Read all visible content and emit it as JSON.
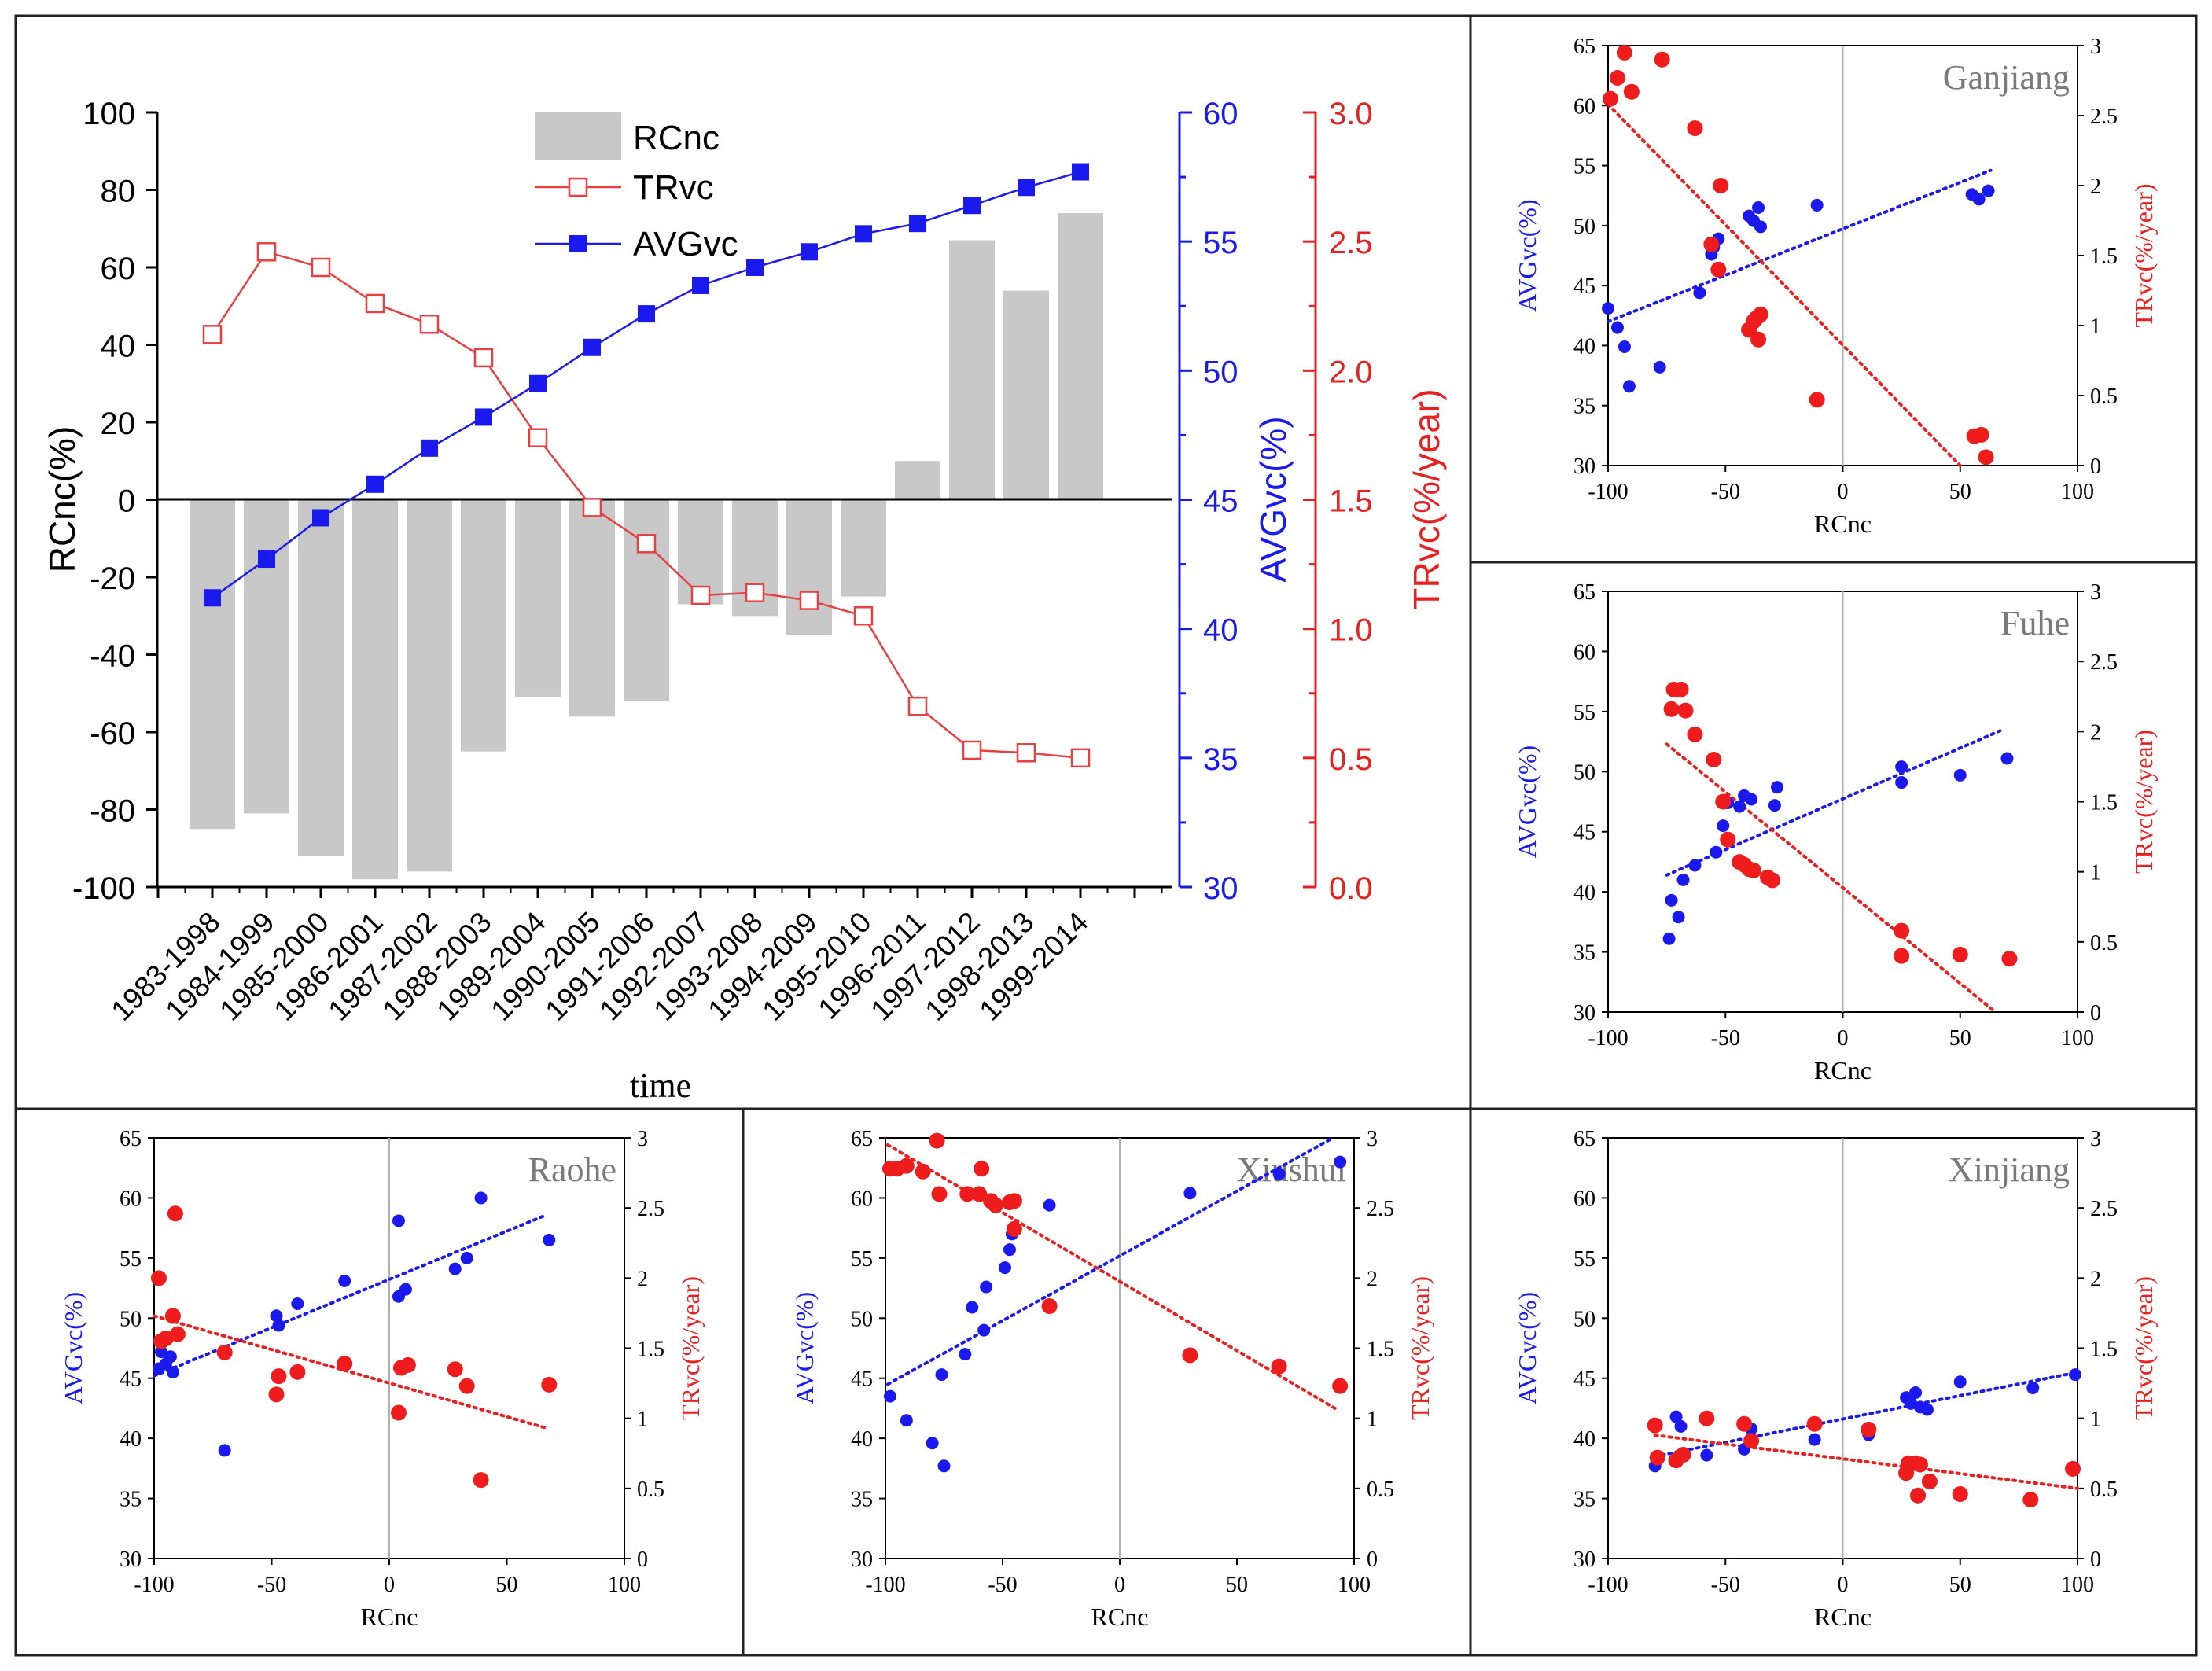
{
  "main": {
    "xlabel": "time",
    "ylabel_left": "RCnc(%)",
    "ylabel_mid": "AVGvc(%)",
    "ylabel_right": "TRvc(%/year)",
    "left_ticks": [
      "100",
      "80",
      "60",
      "40",
      "20",
      "0",
      "-20",
      "-40",
      "-60",
      "-80",
      "-100"
    ],
    "mid_ticks": [
      "60",
      "55",
      "50",
      "45",
      "40",
      "35",
      "30"
    ],
    "right_ticks": [
      "3.0",
      "2.5",
      "2.0",
      "1.5",
      "1.0",
      "0.5",
      "0.0"
    ],
    "legend": [
      "RCnc",
      "TRvc",
      "AVGvc"
    ]
  },
  "panel_axis": {
    "ylabel_left": "AVGvc(%)",
    "ylabel_right": "TRvc(%/year)",
    "xlabel": "RCnc",
    "left_ticks": [
      "65",
      "60",
      "55",
      "50",
      "45",
      "40",
      "35",
      "30"
    ],
    "right_ticks": [
      "3",
      "2.5",
      "2",
      "1.5",
      "1",
      "0.5",
      "0"
    ],
    "x_ticks": [
      "-100",
      "-50",
      "0",
      "50",
      "100"
    ]
  },
  "chart_data": [
    {
      "type": "bar+line",
      "title": "",
      "categories": [
        "1983-1998",
        "1984-1999",
        "1985-2000",
        "1986-2001",
        "1987-2002",
        "1988-2003",
        "1989-2004",
        "1990-2005",
        "1991-2006",
        "1992-2007",
        "1993-2008",
        "1994-2009",
        "1995-2010",
        "1996-2011",
        "1997-2012",
        "1998-2013",
        "1999-2014"
      ],
      "series": [
        {
          "name": "RCnc",
          "axis": "left",
          "color": "#c8c8c8",
          "values": [
            -85,
            -81,
            -92,
            -98,
            -96,
            -65,
            -51,
            -56,
            -52,
            -27,
            -30,
            -35,
            -25,
            10,
            67,
            54,
            74
          ]
        },
        {
          "name": "TRvc",
          "axis": "right",
          "color": "#e84040",
          "values": [
            2.14,
            2.46,
            2.4,
            2.26,
            2.18,
            2.05,
            1.74,
            1.47,
            1.33,
            1.13,
            1.14,
            1.11,
            1.05,
            0.7,
            0.53,
            0.52,
            0.5
          ]
        },
        {
          "name": "AVGvc",
          "axis": "mid",
          "color": "#1a1aee",
          "values": [
            41.2,
            42.7,
            44.3,
            45.6,
            47.0,
            48.2,
            49.5,
            50.9,
            52.2,
            53.3,
            54.0,
            54.6,
            55.3,
            55.7,
            56.4,
            57.1,
            57.7
          ]
        }
      ],
      "ylim_left": [
        -100,
        100
      ],
      "ylim_mid": [
        30,
        60
      ],
      "ylim_right": [
        0,
        3
      ],
      "xlabel": "time",
      "ylabel": "RCnc(%)"
    },
    {
      "type": "scatter",
      "title": "Ganjiang",
      "xlim": [
        -100,
        100
      ],
      "ylim_left": [
        30,
        65
      ],
      "ylim_right": [
        0,
        3
      ],
      "avgvc": [
        [
          -100,
          43.1
        ],
        [
          -96,
          41.5
        ],
        [
          -93,
          39.9
        ],
        [
          -91,
          36.6
        ],
        [
          -78,
          38.2
        ],
        [
          -61,
          44.4
        ],
        [
          -56,
          47.6
        ],
        [
          -55,
          48.2
        ],
        [
          -53,
          48.9
        ],
        [
          -40,
          50.8
        ],
        [
          -38,
          50.4
        ],
        [
          -36,
          51.5
        ],
        [
          -35,
          49.9
        ],
        [
          -11,
          51.7
        ],
        [
          55,
          52.6
        ],
        [
          58,
          52.2
        ],
        [
          62,
          52.9
        ]
      ],
      "trvc": [
        [
          -99,
          2.62
        ],
        [
          -96,
          2.77
        ],
        [
          -93,
          2.95
        ],
        [
          -90,
          2.67
        ],
        [
          -77,
          2.9
        ],
        [
          -63,
          2.41
        ],
        [
          -56,
          1.58
        ],
        [
          -53,
          1.4
        ],
        [
          -52,
          2.0
        ],
        [
          -40,
          0.97
        ],
        [
          -38,
          1.03
        ],
        [
          -37,
          1.05
        ],
        [
          -36,
          0.9
        ],
        [
          -35,
          1.08
        ],
        [
          -11,
          0.47
        ],
        [
          56,
          0.21
        ],
        [
          59,
          0.22
        ],
        [
          61,
          0.06
        ]
      ],
      "avgvc_trend": [
        [
          -100,
          42.0
        ],
        [
          63,
          54.6
        ]
      ],
      "trvc_trend": [
        [
          -100,
          2.58
        ],
        [
          50,
          0.0
        ]
      ]
    },
    {
      "type": "scatter",
      "title": "Fuhe",
      "xlim": [
        -100,
        100
      ],
      "ylim_left": [
        30,
        65
      ],
      "ylim_right": [
        0,
        3
      ],
      "avgvc": [
        [
          -74,
          36.1
        ],
        [
          -73,
          39.3
        ],
        [
          -70,
          37.9
        ],
        [
          -68,
          41.0
        ],
        [
          -63,
          42.2
        ],
        [
          -54,
          43.3
        ],
        [
          -51,
          45.5
        ],
        [
          -49,
          47.4
        ],
        [
          -44,
          47.1
        ],
        [
          -42,
          48.0
        ],
        [
          -39,
          47.7
        ],
        [
          -29,
          47.2
        ],
        [
          -28,
          48.7
        ],
        [
          25,
          49.1
        ],
        [
          25,
          50.4
        ],
        [
          50,
          49.7
        ],
        [
          70,
          51.1
        ]
      ],
      "trvc": [
        [
          -73,
          2.16
        ],
        [
          -72,
          2.3
        ],
        [
          -69,
          2.3
        ],
        [
          -67,
          2.15
        ],
        [
          -63,
          1.98
        ],
        [
          -55,
          1.8
        ],
        [
          -51,
          1.5
        ],
        [
          -49,
          1.23
        ],
        [
          -44,
          1.07
        ],
        [
          -42,
          1.05
        ],
        [
          -40,
          1.02
        ],
        [
          -38,
          1.01
        ],
        [
          -32,
          0.96
        ],
        [
          -30,
          0.94
        ],
        [
          25,
          0.58
        ],
        [
          25,
          0.4
        ],
        [
          50,
          0.41
        ],
        [
          71,
          0.38
        ]
      ],
      "avgvc_trend": [
        [
          -75,
          41.4
        ],
        [
          67,
          53.4
        ]
      ],
      "trvc_trend": [
        [
          -75,
          1.91
        ],
        [
          65,
          0.0
        ]
      ]
    },
    {
      "type": "scatter",
      "title": "Raohe",
      "xlim": [
        -100,
        100
      ],
      "ylim_left": [
        30,
        65
      ],
      "ylim_right": [
        0,
        3
      ],
      "avgvc": [
        [
          -98,
          45.8
        ],
        [
          -97,
          47.2
        ],
        [
          -95,
          46.2
        ],
        [
          -93,
          46.8
        ],
        [
          -92,
          45.5
        ],
        [
          -70,
          39.0
        ],
        [
          -48,
          50.2
        ],
        [
          -47,
          49.4
        ],
        [
          -39,
          51.2
        ],
        [
          -19,
          53.1
        ],
        [
          4,
          58.1
        ],
        [
          4,
          51.8
        ],
        [
          7,
          52.4
        ],
        [
          28,
          54.1
        ],
        [
          33,
          55.0
        ],
        [
          39,
          60.0
        ],
        [
          68,
          56.5
        ]
      ],
      "trvc": [
        [
          -98,
          2.0
        ],
        [
          -97,
          1.55
        ],
        [
          -95,
          1.57
        ],
        [
          -92,
          1.73
        ],
        [
          -91,
          2.46
        ],
        [
          -90,
          1.6
        ],
        [
          -70,
          1.47
        ],
        [
          -48,
          1.17
        ],
        [
          -47,
          1.3
        ],
        [
          -39,
          1.33
        ],
        [
          -19,
          1.39
        ],
        [
          4,
          1.04
        ],
        [
          5,
          1.36
        ],
        [
          8,
          1.38
        ],
        [
          28,
          1.35
        ],
        [
          33,
          1.23
        ],
        [
          39,
          0.56
        ],
        [
          68,
          1.24
        ]
      ],
      "avgvc_trend": [
        [
          -100,
          45.2
        ],
        [
          67,
          58.6
        ]
      ],
      "trvc_trend": [
        [
          -100,
          1.73
        ],
        [
          67,
          0.93
        ]
      ]
    },
    {
      "type": "scatter",
      "title": "Xiushui",
      "xlim": [
        -100,
        100
      ],
      "ylim_left": [
        30,
        65
      ],
      "ylim_right": [
        0,
        3
      ],
      "avgvc": [
        [
          -98,
          43.5
        ],
        [
          -91,
          41.5
        ],
        [
          -80,
          39.6
        ],
        [
          -76,
          45.3
        ],
        [
          -75,
          37.7
        ],
        [
          -66,
          47.0
        ],
        [
          -63,
          50.9
        ],
        [
          -58,
          49.0
        ],
        [
          -57,
          52.6
        ],
        [
          -49,
          54.2
        ],
        [
          -47,
          55.7
        ],
        [
          -46,
          57.0
        ],
        [
          -30,
          59.4
        ],
        [
          30,
          60.4
        ],
        [
          68,
          62.0
        ],
        [
          94,
          63.0
        ]
      ],
      "trvc": [
        [
          -98,
          2.78
        ],
        [
          -95,
          2.78
        ],
        [
          -91,
          2.8
        ],
        [
          -84,
          2.76
        ],
        [
          -78,
          2.98
        ],
        [
          -77,
          2.6
        ],
        [
          -65,
          2.6
        ],
        [
          -60,
          2.6
        ],
        [
          -59,
          2.78
        ],
        [
          -55,
          2.55
        ],
        [
          -53,
          2.52
        ],
        [
          -47,
          2.54
        ],
        [
          -45,
          2.55
        ],
        [
          -45,
          2.35
        ],
        [
          -30,
          1.8
        ],
        [
          30,
          1.45
        ],
        [
          68,
          1.37
        ],
        [
          94,
          1.23
        ]
      ],
      "avgvc_trend": [
        [
          -99,
          44.5
        ],
        [
          91,
          65.0
        ]
      ],
      "trvc_trend": [
        [
          -99,
          2.95
        ],
        [
          93,
          1.06
        ]
      ]
    },
    {
      "type": "scatter",
      "title": "Xinjiang",
      "xlim": [
        -100,
        100
      ],
      "ylim_left": [
        30,
        65
      ],
      "ylim_right": [
        0,
        3
      ],
      "avgvc": [
        [
          -80,
          37.7
        ],
        [
          -79,
          38.2
        ],
        [
          -71,
          41.8
        ],
        [
          -69,
          41.0
        ],
        [
          -58,
          38.6
        ],
        [
          -42,
          39.1
        ],
        [
          -39,
          40.8
        ],
        [
          -12,
          39.9
        ],
        [
          11,
          40.3
        ],
        [
          27,
          43.4
        ],
        [
          29,
          42.9
        ],
        [
          31,
          43.8
        ],
        [
          33,
          42.6
        ],
        [
          36,
          42.4
        ],
        [
          50,
          44.7
        ],
        [
          81,
          44.2
        ],
        [
          99,
          45.3
        ]
      ],
      "trvc": [
        [
          -80,
          0.95
        ],
        [
          -79,
          0.72
        ],
        [
          -71,
          0.7
        ],
        [
          -68,
          0.74
        ],
        [
          -58,
          1.0
        ],
        [
          -42,
          0.96
        ],
        [
          -39,
          0.84
        ],
        [
          -12,
          0.96
        ],
        [
          11,
          0.92
        ],
        [
          27,
          0.61
        ],
        [
          28,
          0.68
        ],
        [
          31,
          0.68
        ],
        [
          32,
          0.45
        ],
        [
          33,
          0.67
        ],
        [
          37,
          0.55
        ],
        [
          50,
          0.46
        ],
        [
          80,
          0.42
        ],
        [
          98,
          0.64
        ]
      ],
      "avgvc_trend": [
        [
          -80,
          38.5
        ],
        [
          100,
          45.5
        ]
      ],
      "trvc_trend": [
        [
          -80,
          0.88
        ],
        [
          100,
          0.5
        ]
      ]
    }
  ]
}
